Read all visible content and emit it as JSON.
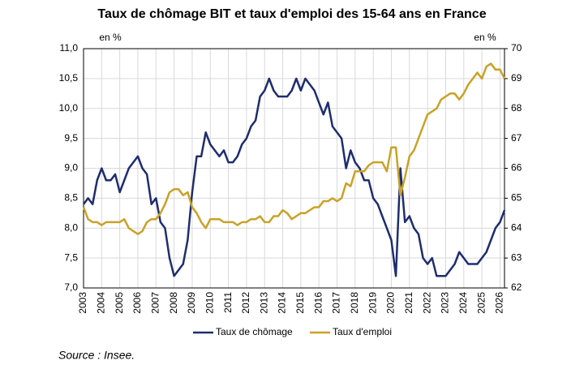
{
  "chart_data": {
    "type": "line",
    "title": "Taux de chômage BIT et taux d'emploi des 15-64 ans en France",
    "y_label": "en %",
    "y2_label": "en %",
    "source": "Source : Insee.",
    "x": [
      2003,
      2003.25,
      2003.5,
      2003.75,
      2004,
      2004.25,
      2004.5,
      2004.75,
      2005,
      2005.25,
      2005.5,
      2005.75,
      2006,
      2006.25,
      2006.5,
      2006.75,
      2007,
      2007.25,
      2007.5,
      2007.75,
      2008,
      2008.25,
      2008.5,
      2008.75,
      2009,
      2009.25,
      2009.5,
      2009.75,
      2010,
      2010.25,
      2010.5,
      2010.75,
      2011,
      2011.25,
      2011.5,
      2011.75,
      2012,
      2012.25,
      2012.5,
      2012.75,
      2013,
      2013.25,
      2013.5,
      2013.75,
      2014,
      2014.25,
      2014.5,
      2014.75,
      2015,
      2015.25,
      2015.5,
      2015.75,
      2016,
      2016.25,
      2016.5,
      2016.75,
      2017,
      2017.25,
      2017.5,
      2017.75,
      2018,
      2018.25,
      2018.5,
      2018.75,
      2019,
      2019.25,
      2019.5,
      2019.75,
      2020,
      2020.25,
      2020.5,
      2020.75,
      2021,
      2021.25,
      2021.5,
      2021.75,
      2022,
      2022.25,
      2022.5,
      2022.75,
      2023,
      2023.25,
      2023.5,
      2023.75,
      2024,
      2024.25,
      2024.5,
      2024.75,
      2025,
      2025.25,
      2025.5,
      2025.75,
      2026,
      2026.25
    ],
    "series": [
      {
        "name": "Taux de chômage",
        "color": "#1f2d6e",
        "values": [
          8.4,
          8.5,
          8.4,
          8.8,
          9.0,
          8.8,
          8.8,
          8.9,
          8.6,
          8.8,
          9.0,
          9.1,
          9.2,
          9.0,
          8.9,
          8.4,
          8.5,
          8.1,
          8.0,
          7.5,
          7.2,
          7.3,
          7.4,
          7.8,
          8.6,
          9.2,
          9.2,
          9.6,
          9.4,
          9.3,
          9.2,
          9.3,
          9.1,
          9.1,
          9.2,
          9.4,
          9.5,
          9.7,
          9.8,
          10.2,
          10.3,
          10.5,
          10.3,
          10.2,
          10.2,
          10.2,
          10.3,
          10.5,
          10.3,
          10.5,
          10.4,
          10.3,
          10.1,
          9.9,
          10.1,
          9.7,
          9.6,
          9.5,
          9.0,
          9.3,
          9.1,
          9.0,
          8.8,
          8.8,
          8.5,
          8.4,
          8.2,
          8.0,
          7.8,
          7.2,
          9.0,
          8.1,
          8.2,
          8.0,
          7.9,
          7.5,
          7.4,
          7.5,
          7.2,
          7.2,
          7.2,
          7.3,
          7.4,
          7.6,
          7.5,
          7.4,
          7.4,
          7.4,
          7.5,
          7.6,
          7.8,
          8.0,
          8.1,
          8.3
        ]
      },
      {
        "name": "Taux d'emploi",
        "color": "#c9a227",
        "axis": "y2",
        "values": [
          64.7,
          64.3,
          64.2,
          64.2,
          64.1,
          64.2,
          64.2,
          64.2,
          64.2,
          64.3,
          64.0,
          63.9,
          63.8,
          63.9,
          64.2,
          64.3,
          64.3,
          64.5,
          64.8,
          65.2,
          65.3,
          65.3,
          65.1,
          65.2,
          64.7,
          64.5,
          64.2,
          64.0,
          64.3,
          64.3,
          64.3,
          64.2,
          64.2,
          64.2,
          64.1,
          64.2,
          64.2,
          64.3,
          64.3,
          64.4,
          64.2,
          64.2,
          64.4,
          64.4,
          64.6,
          64.5,
          64.3,
          64.4,
          64.5,
          64.5,
          64.6,
          64.7,
          64.7,
          64.9,
          64.9,
          65.0,
          64.9,
          65.0,
          65.5,
          65.4,
          65.9,
          65.9,
          65.9,
          66.1,
          66.2,
          66.2,
          66.2,
          65.9,
          66.7,
          66.7,
          65.1,
          65.7,
          66.4,
          66.6,
          67.0,
          67.4,
          67.8,
          67.9,
          68.0,
          68.3,
          68.4,
          68.5,
          68.5,
          68.3,
          68.5,
          68.8,
          69.0,
          69.2,
          69.0,
          69.4,
          69.5,
          69.3,
          69.3,
          69.0
        ]
      }
    ],
    "xlim": [
      2003,
      2026.25
    ],
    "xticks": [
      2003,
      2004,
      2005,
      2006,
      2007,
      2008,
      2009,
      2010,
      2011,
      2012,
      2013,
      2014,
      2015,
      2016,
      2017,
      2018,
      2019,
      2020,
      2021,
      2022,
      2023,
      2024,
      2025,
      2026
    ],
    "ylim": [
      7,
      11
    ],
    "yticks": [
      {
        "value": 7,
        "label": "7,0"
      },
      {
        "value": 7.5,
        "label": "7,5"
      },
      {
        "value": 8,
        "label": "8,0"
      },
      {
        "value": 8.5,
        "label": "8,5"
      },
      {
        "value": 9,
        "label": "9,0"
      },
      {
        "value": 9.5,
        "label": "9,5"
      },
      {
        "value": 10,
        "label": "10,0"
      },
      {
        "value": 10.5,
        "label": "10,5"
      },
      {
        "value": 11,
        "label": "11,0"
      }
    ],
    "y2lim": [
      62,
      70
    ],
    "y2ticks": [
      62,
      63,
      64,
      65,
      66,
      67,
      68,
      69,
      70
    ],
    "grid": true
  }
}
